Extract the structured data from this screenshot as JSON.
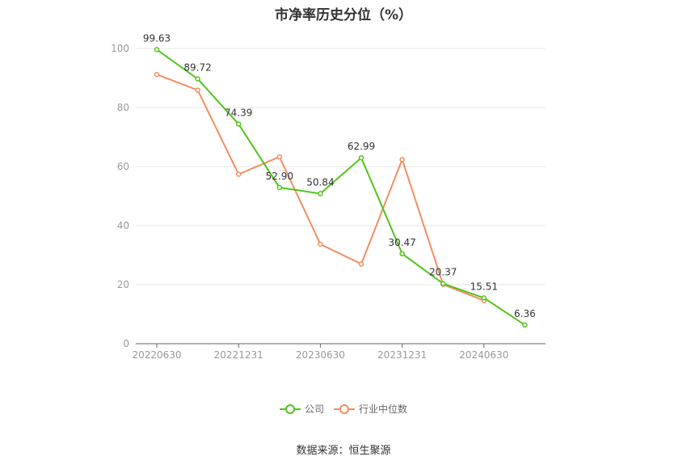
{
  "chart_data": {
    "type": "line",
    "title": "市净率历史分位（%）",
    "x_tick_labels": [
      "20220630",
      "20221231",
      "20230630",
      "20231231",
      "20240630"
    ],
    "x_points": 10,
    "y_ticks": [
      0,
      20,
      40,
      60,
      80,
      100
    ],
    "ylim": [
      0,
      100
    ],
    "grid": true,
    "legend_position": "bottom",
    "series": [
      {
        "name": "公司",
        "color": "#52c41a",
        "values": [
          99.63,
          89.72,
          74.39,
          52.9,
          50.84,
          62.99,
          30.47,
          20.37,
          15.51,
          6.36
        ],
        "labels": [
          "99.63",
          "89.72",
          "74.39",
          "52.90",
          "50.84",
          "62.99",
          "30.47",
          "20.37",
          "15.51",
          "6.36"
        ]
      },
      {
        "name": "行业中位数",
        "color": "#f28e5f",
        "values": [
          91.2,
          85.9,
          57.4,
          63.3,
          33.7,
          27.0,
          62.4,
          20.1,
          14.6,
          null
        ]
      }
    ]
  },
  "source": "数据来源：恒生聚源"
}
